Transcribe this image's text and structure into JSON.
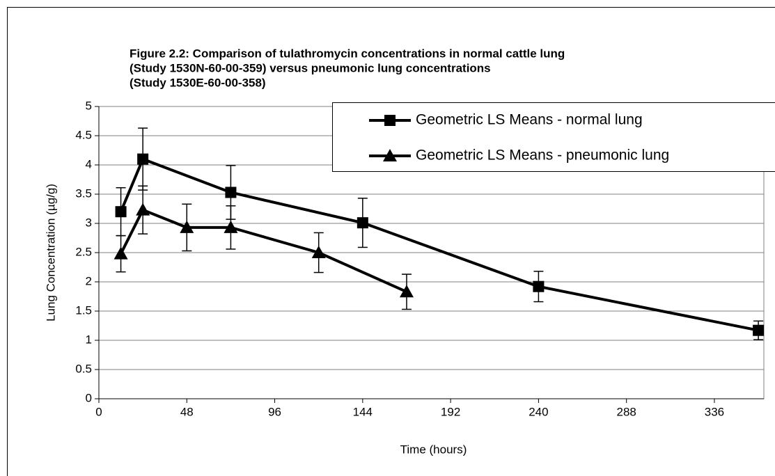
{
  "chart_data": {
    "type": "line",
    "title_lines": [
      "Figure 2.2: Comparison of tulathromycin concentrations in normal cattle lung",
      "(Study 1530N-60-00-359) versus pneumonic lung concentrations",
      "(Study 1530E-60-00-358)"
    ],
    "x_label": "Time (hours)",
    "y_label": "Lung Concentration (µg/g)",
    "series": [
      {
        "name": "Geometric LS Means - normal lung",
        "color": "#000000",
        "marker": "square",
        "x": [
          12,
          24,
          72,
          144,
          240,
          360
        ],
        "values": [
          3.2,
          4.1,
          3.53,
          3.01,
          1.92,
          1.17
        ],
        "errors": [
          0.41,
          0.53,
          0.46,
          0.42,
          0.26,
          0.16
        ]
      },
      {
        "name": "Geometric LS Means - pneumonic lung",
        "color": "#000000",
        "marker": "triangle",
        "x": [
          12,
          24,
          48,
          72,
          120,
          168
        ],
        "values": [
          2.48,
          3.23,
          2.93,
          2.93,
          2.5,
          1.83
        ],
        "errors": [
          0.31,
          0.41,
          0.4,
          0.37,
          0.34,
          0.3
        ]
      }
    ],
    "xlim": [
      0,
      363
    ],
    "xticks": [
      0,
      48,
      96,
      144,
      192,
      240,
      288,
      336
    ],
    "ylim": [
      0,
      5
    ],
    "yticks": [
      0,
      0.5,
      1,
      1.5,
      2,
      2.5,
      3,
      3.5,
      4,
      4.5,
      5
    ],
    "grid": true,
    "legend": "top-right"
  }
}
